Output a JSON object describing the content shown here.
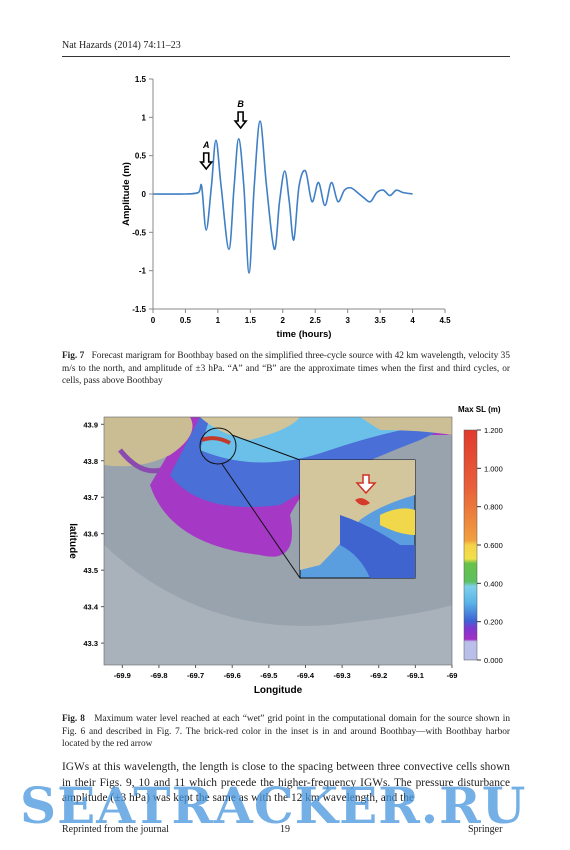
{
  "header": {
    "journal": "Nat Hazards (2014) 74:11–23"
  },
  "chart_data": [
    {
      "type": "line",
      "y_label": "Amplitude (m)",
      "x_label": "time (hours)",
      "x": [
        0,
        0.5,
        0.7,
        0.75,
        0.82,
        0.9,
        0.97,
        1.05,
        1.17,
        1.25,
        1.32,
        1.4,
        1.48,
        1.56,
        1.65,
        1.75,
        1.87,
        1.95,
        2.03,
        2.1,
        2.17,
        2.25,
        2.35,
        2.45,
        2.55,
        2.65,
        2.75,
        2.85,
        2.95,
        3.05,
        3.15,
        3.25,
        3.35,
        3.45,
        3.55,
        3.65,
        3.75,
        3.85,
        4.0
      ],
      "values": [
        0,
        0,
        0.02,
        0.1,
        -0.47,
        0.1,
        0.7,
        0.1,
        -0.72,
        0.1,
        0.72,
        0.1,
        -1.03,
        0.1,
        0.95,
        0.1,
        -0.72,
        -0.1,
        0.3,
        -0.1,
        -0.6,
        0.1,
        0.3,
        -0.1,
        0.15,
        -0.15,
        0.15,
        -0.1,
        0.05,
        0.08,
        0.02,
        -0.05,
        -0.1,
        0.02,
        0.05,
        -0.02,
        0.05,
        0.02,
        0
      ],
      "color": "#3f7fc6",
      "xlim": [
        0,
        4.5
      ],
      "xticks": [
        0,
        0.5,
        1,
        1.5,
        2,
        2.5,
        3,
        3.5,
        4,
        4.5
      ],
      "ylim": [
        -1.5,
        1.5
      ],
      "yticks": [
        -1.5,
        -1,
        -0.5,
        0,
        0.5,
        1,
        1.5
      ],
      "annotations": [
        {
          "text": "A",
          "x": 0.82
        },
        {
          "text": "B",
          "x": 1.35
        }
      ]
    },
    {
      "type": "map",
      "x_label": "Longitude",
      "y_label": "latitude",
      "colorbar_title": "Max SL (m)",
      "xlim": [
        -69.95,
        -69.0
      ],
      "xticks": [
        -69.9,
        -69.8,
        -69.7,
        -69.6,
        -69.5,
        -69.4,
        -69.3,
        -69.2,
        -69.1,
        -69
      ],
      "ylim": [
        43.24,
        43.92
      ],
      "yticks": [
        43.3,
        43.4,
        43.5,
        43.6,
        43.7,
        43.8,
        43.9
      ],
      "clim": [
        0,
        1.2
      ],
      "cticks": [
        {
          "value": 0,
          "label": "0.000"
        },
        {
          "value": 0.2,
          "label": "0.200"
        },
        {
          "value": 0.4,
          "label": "0.400"
        },
        {
          "value": 0.6,
          "label": "0.600"
        },
        {
          "value": 0.8,
          "label": "0.800"
        },
        {
          "value": 1,
          "label": "1.000"
        },
        {
          "value": 1.2,
          "label": "1.200"
        }
      ]
    }
  ],
  "fig7_caption": {
    "label": "Fig. 7",
    "text": "Forecast marigram for Boothbay based on the simplified three-cycle source with 42 km wavelength, velocity 35 m/s to the north, and amplitude of ±3 hPa. “A” and “B” are the approximate times when the first and third cycles, or cells, pass above Boothbay"
  },
  "fig8_caption": {
    "label": "Fig. 8",
    "text": "Maximum water level reached at each “wet” grid point in the computational domain for the source shown in Fig. 6 and described in Fig. 7. The brick-red color in the inset is in and around Boothbay—with Boothbay harbor located by the red arrow"
  },
  "body": "IGWs at this wavelength, the length is close to the spacing between three convective cells shown in their Figs. 9, 10 and 11 which precede the higher-frequency IGWs. The pressure disturbance amplitude (±3 hPa) was kept the same as with the 12 km wavelength, and the",
  "watermark": "SEATRACKER.RU",
  "footer": {
    "left": "Reprinted from the journal",
    "page": "19",
    "publisher": "Springer"
  }
}
